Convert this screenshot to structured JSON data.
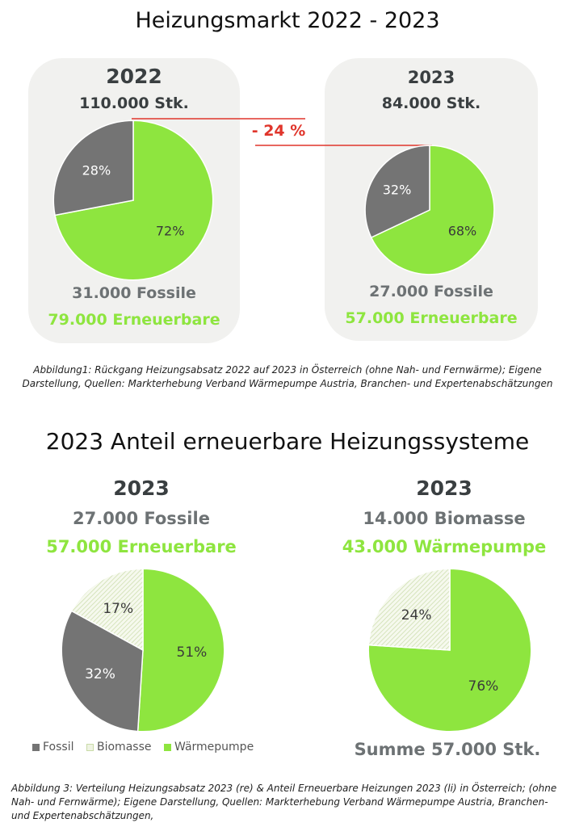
{
  "page_title": "Heizungsmarkt 2022 - 2023",
  "section2_title": "2023 Anteil erneuerbare Heizungssysteme",
  "top_left": {
    "year": "2022",
    "total": "110.000 Stk.",
    "fossile": "31.000 Fossile",
    "erneuerbare": "79.000 Erneuerbare"
  },
  "top_right": {
    "year": "2023",
    "total": "84.000 Stk.",
    "fossile": "27.000 Fossile",
    "erneuerbare": "57.000 Erneuerbare"
  },
  "change_label": "- 24 %",
  "caption1": "Abbildung1: Rückgang Heizungsabsatz 2022 auf 2023 in Österreich (ohne Nah- und Fernwärme); Eigene Darstellung, Quellen: Markterhebung Verband Wärmepumpe Austria, Branchen- und Expertenabschätzungen",
  "bottom_left": {
    "year": "2023",
    "line1": "27.000 Fossile",
    "line2": "57.000 Erneuerbare"
  },
  "bottom_right": {
    "year": "2023",
    "line1": "14.000 Biomasse",
    "line2": "43.000 Wärmepumpe",
    "summe": "Summe 57.000 Stk."
  },
  "legend": [
    "Fossil",
    "Biomasse",
    "Wärmepumpe"
  ],
  "caption2": "Abbildung 3: Verteilung Heizungsabsatz 2023 (re) & Anteil Erneuerbare Heizungen 2023 (li) in Österreich; (ohne Nah- und Fernwärme); Eigene Darstellung, Quellen: Markterhebung Verband Wärmepumpe Austria, Branchen- und Expertenabschätzungen,",
  "colors": {
    "fossil": "#747474",
    "renewable": "#8ee53f",
    "biomasse_hatch": "#c9dba8",
    "panel": "#f1f1ef",
    "change": "#e0352b"
  },
  "chart_data": [
    {
      "type": "pie",
      "categories": [
        "Fossil",
        "Erneuerbare"
      ],
      "values": [
        28,
        72
      ],
      "labels": [
        "28%",
        "72%"
      ],
      "title": "2022"
    },
    {
      "type": "pie",
      "categories": [
        "Fossil",
        "Erneuerbare"
      ],
      "values": [
        32,
        68
      ],
      "labels": [
        "32%",
        "68%"
      ],
      "title": "2023"
    },
    {
      "type": "pie",
      "categories": [
        "Fossil",
        "Biomasse",
        "Wärmepumpe"
      ],
      "values": [
        32,
        17,
        51
      ],
      "labels": [
        "32%",
        "17%",
        "51%"
      ],
      "title": "2023"
    },
    {
      "type": "pie",
      "categories": [
        "Biomasse",
        "Wärmepumpe"
      ],
      "values": [
        24,
        76
      ],
      "labels": [
        "24%",
        "76%"
      ],
      "title": "2023"
    }
  ]
}
